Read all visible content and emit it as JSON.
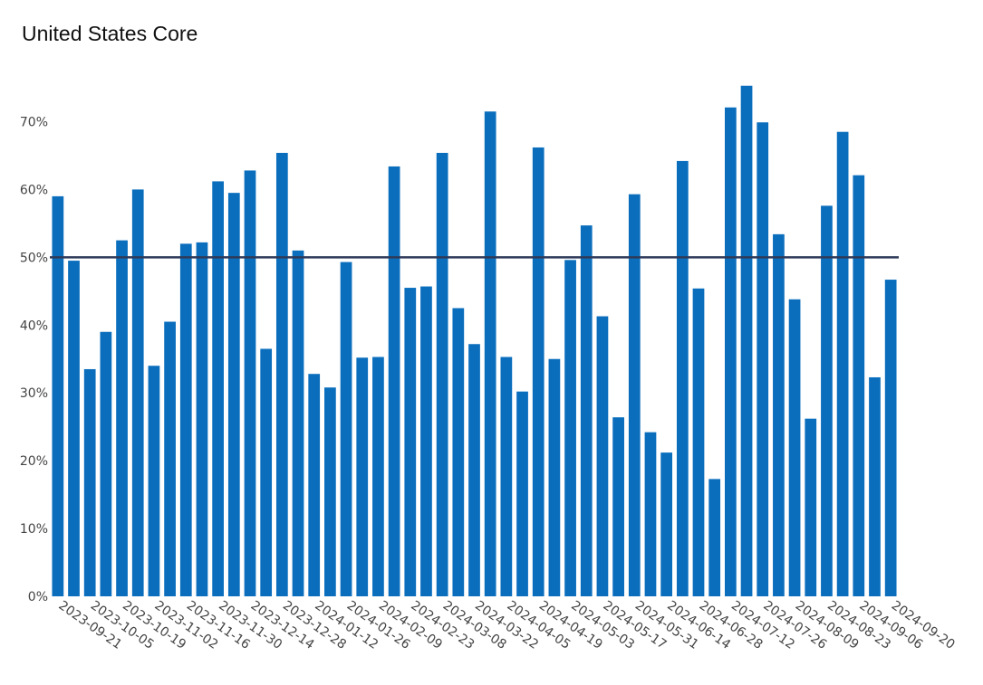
{
  "page": {
    "title": "United States Core"
  },
  "chart_data": {
    "type": "bar",
    "title": "United States Core",
    "xlabel": "",
    "ylabel": "",
    "ylim": [
      0,
      75
    ],
    "y_ticks": [
      "0%",
      "10%",
      "20%",
      "30%",
      "40%",
      "50%",
      "60%",
      "70%"
    ],
    "y_tick_values": [
      0,
      10,
      20,
      30,
      40,
      50,
      60,
      70
    ],
    "reference_line": 50,
    "colors": {
      "bar": "#0a6ebd",
      "reference_line": "#2e3a59",
      "grid": "#ffffff"
    },
    "x_tick_labels": [
      "2023-09-21",
      "2023-10-05",
      "2023-10-19",
      "2023-11-02",
      "2023-11-16",
      "2023-11-30",
      "2023-12-14",
      "2023-12-28",
      "2024-01-12",
      "2024-01-26",
      "2024-02-09",
      "2024-02-23",
      "2024-03-08",
      "2024-03-22",
      "2024-04-05",
      "2024-04-19",
      "2024-05-03",
      "2024-05-17",
      "2024-05-31",
      "2024-06-14",
      "2024-06-28",
      "2024-07-12",
      "2024-07-26",
      "2024-08-09",
      "2024-08-23",
      "2024-09-06",
      "2024-09-20"
    ],
    "series": [
      {
        "values": [
          59,
          49.5,
          33.5,
          39,
          52.5,
          60,
          34,
          40.5,
          52,
          52.2,
          61.2,
          59.5,
          62.8,
          36.5,
          65.4,
          51,
          32.8,
          30.8,
          49.3,
          35.2,
          35.3,
          63.4,
          45.5,
          45.7,
          65.4,
          42.5,
          37.2,
          71.5,
          35.3,
          30.2,
          66.2,
          35,
          49.6,
          54.7,
          41.3,
          26.4,
          59.3,
          24.2,
          21.2,
          64.2,
          45.4,
          17.3,
          72.1,
          75.3,
          69.9,
          53.4,
          43.8,
          26.2,
          57.6,
          68.5,
          62.1,
          32.3,
          46.7
        ]
      }
    ]
  }
}
